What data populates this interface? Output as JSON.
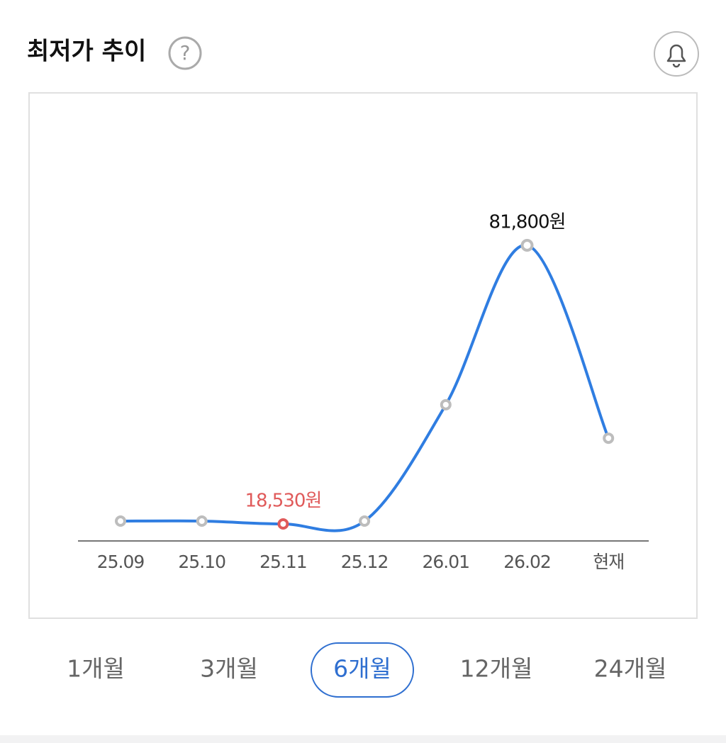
{
  "header": {
    "title": "최저가 추이",
    "help_icon": "?"
  },
  "chart_data": {
    "type": "line",
    "categories": [
      "25.09",
      "25.10",
      "25.11",
      "25.12",
      "26.01",
      "26.02",
      "현재"
    ],
    "values": [
      19170,
      19170,
      18530,
      19170,
      45600,
      81800,
      38000
    ],
    "value_labels": [
      null,
      null,
      "18,530원",
      null,
      null,
      "81,800원",
      null
    ],
    "color": "#2f7de1",
    "marker_color": "#bdbdbd",
    "highlight_color": "#e05a5a"
  },
  "period_tabs": {
    "options": [
      "1개월",
      "3개월",
      "6개월",
      "12개월",
      "24개월"
    ],
    "selected": 2
  }
}
